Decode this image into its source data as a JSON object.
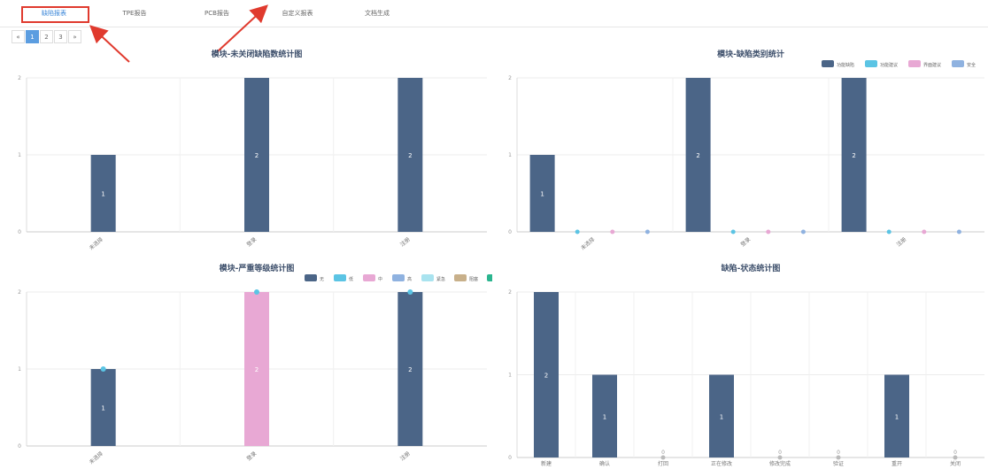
{
  "tabs": [
    {
      "label": "缺陷报表",
      "active": true
    },
    {
      "label": "TPE报告",
      "active": false
    },
    {
      "label": "PCB报告",
      "active": false
    },
    {
      "label": "自定义报表",
      "active": false
    },
    {
      "label": "文档生成",
      "active": false
    }
  ],
  "pagination": {
    "prev": "«",
    "pages": [
      "1",
      "2",
      "3"
    ],
    "current": "1",
    "next": "»"
  },
  "colors": {
    "primary": "#4b6587",
    "light_blue": "#5bc4e4",
    "pink": "#e8a8d4",
    "periwinkle": "#8fb2e0",
    "pale_cyan": "#a9e3ef",
    "tan": "#c8b08a",
    "green": "#2bb58f",
    "highlight": "#e03a2e",
    "active_tab": "#3a86d8"
  },
  "chart_data": [
    {
      "id": "unclosed-defects",
      "type": "bar",
      "title": "模块-未关闭缺陷数统计图",
      "categories": [
        "未选择",
        "登录",
        "注册"
      ],
      "series": [
        {
          "values": [
            1,
            2,
            2
          ],
          "color": "#4b6587"
        }
      ],
      "ylim": [
        0,
        2
      ],
      "yticks": [
        0,
        1,
        2
      ],
      "grid": true,
      "data_labels": true
    },
    {
      "id": "defect-category",
      "type": "bar",
      "title": "模块-缺陷类别统计",
      "categories": [
        "未选择",
        "登录",
        "注册"
      ],
      "legend": [
        "功能缺陷",
        "功能建议",
        "界面建议",
        "安全"
      ],
      "legend_position": "top-right",
      "series": [
        {
          "name": "功能缺陷",
          "values": [
            1,
            2,
            2
          ],
          "color": "#4b6587"
        },
        {
          "name": "功能建议",
          "values": [
            0,
            0,
            0
          ],
          "color": "#5bc4e4"
        },
        {
          "name": "界面建议",
          "values": [
            0,
            0,
            0
          ],
          "color": "#e8a8d4"
        },
        {
          "name": "安全",
          "values": [
            0,
            0,
            0
          ],
          "color": "#8fb2e0"
        }
      ],
      "ylim": [
        0,
        2
      ],
      "yticks": [
        0,
        1,
        2
      ],
      "grid": true,
      "data_labels": true
    },
    {
      "id": "severity",
      "type": "bar",
      "title": "模块-严重等级统计图",
      "categories": [
        "未选择",
        "登录",
        "注册"
      ],
      "legend": [
        "无",
        "低",
        "中",
        "高",
        "紧急",
        "阻塞",
        "致"
      ],
      "legend_position": "top-right",
      "series": [
        {
          "name": "无",
          "values": [
            1,
            0,
            2
          ],
          "color": "#4b6587"
        },
        {
          "name": "低",
          "values": [
            0,
            0,
            0
          ],
          "color": "#5bc4e4"
        },
        {
          "name": "中",
          "values": [
            0,
            2,
            0
          ],
          "color": "#e8a8d4"
        },
        {
          "name": "高",
          "values": [
            0,
            0,
            0
          ],
          "color": "#8fb2e0"
        },
        {
          "name": "紧急",
          "values": [
            0,
            0,
            0
          ],
          "color": "#a9e3ef"
        },
        {
          "name": "阻塞",
          "values": [
            0,
            0,
            0
          ],
          "color": "#c8b08a"
        },
        {
          "name": "致",
          "values": [
            0,
            0,
            0
          ],
          "color": "#2bb58f"
        }
      ],
      "stacked": true,
      "ylim": [
        0,
        2
      ],
      "yticks": [
        0,
        1,
        2
      ],
      "grid": true,
      "data_labels": true
    },
    {
      "id": "defect-status",
      "type": "bar",
      "title": "缺陷-状态统计图",
      "categories": [
        "新建",
        "确认",
        "打回",
        "正在修改",
        "修改完成",
        "验证",
        "重开",
        "关闭"
      ],
      "series": [
        {
          "values": [
            2,
            1,
            0,
            1,
            0,
            0,
            1,
            0
          ],
          "color": "#4b6587"
        }
      ],
      "ylim": [
        0,
        2
      ],
      "yticks": [
        0,
        1,
        2
      ],
      "grid": true,
      "data_labels": true
    }
  ]
}
